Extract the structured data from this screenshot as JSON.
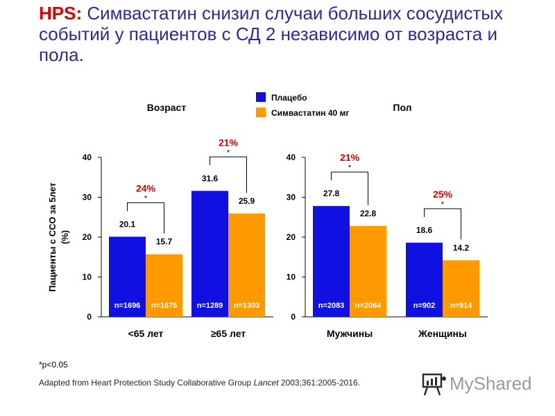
{
  "title": {
    "prefix": "HPS:",
    "text": " Симвастатин  снизил случаи больших сосудистых событий у пациентов с СД 2 независимо от возраста и пола."
  },
  "legend": {
    "items": [
      {
        "label": "Плацебо",
        "color": "#1010e0"
      },
      {
        "label": "Симвастатин 40 мг",
        "color": "#ff9900"
      }
    ]
  },
  "footnote": "*p<0.05",
  "source": {
    "prefix": "Adapted from Heart Protection Study Collaborative Group ",
    "journal": "Lancet",
    "suffix": " 2003;361:2005-2016."
  },
  "logo": {
    "text": "MyShared"
  },
  "chart_data": [
    {
      "type": "bar",
      "title": "Возраст",
      "ylabel": "Пациенты с ССО за 5лет (%)",
      "ylim": [
        0,
        40
      ],
      "yticks": [
        0,
        10,
        20,
        30,
        40
      ],
      "categories": [
        "<65 лет",
        "≥65 лет"
      ],
      "series": [
        {
          "name": "Плацебо",
          "color": "#1010e0",
          "values": [
            20.1,
            31.6
          ],
          "value_labels": [
            "20.1",
            "31.6"
          ],
          "n_labels": [
            "n=1696",
            "n=1289"
          ]
        },
        {
          "name": "Симвастатин 40 мг",
          "color": "#ff9900",
          "values": [
            15.7,
            25.9
          ],
          "value_labels": [
            "15.7",
            "25.9"
          ],
          "n_labels": [
            "n=1675",
            "n=1303"
          ]
        }
      ],
      "annotations": [
        {
          "category": 0,
          "reduction": "24%",
          "marker": "*"
        },
        {
          "category": 1,
          "reduction": "21%",
          "marker": "*"
        }
      ]
    },
    {
      "type": "bar",
      "title": "Пол",
      "ylim": [
        0,
        40
      ],
      "yticks": [
        0,
        10,
        20,
        30,
        40
      ],
      "categories": [
        "Мужчины",
        "Женщины"
      ],
      "series": [
        {
          "name": "Плацебо",
          "color": "#1010e0",
          "values": [
            27.8,
            18.6
          ],
          "value_labels": [
            "27.8",
            "18.6"
          ],
          "n_labels": [
            "n=2083",
            "n=902"
          ]
        },
        {
          "name": "Симвастатин 40 мг",
          "color": "#ff9900",
          "values": [
            22.8,
            14.2
          ],
          "value_labels": [
            "22.8",
            "14.2"
          ],
          "n_labels": [
            "n=2064",
            "n=914"
          ]
        }
      ],
      "annotations": [
        {
          "category": 0,
          "reduction": "21%",
          "marker": "*"
        },
        {
          "category": 1,
          "reduction": "25%",
          "marker": "*"
        }
      ]
    }
  ]
}
